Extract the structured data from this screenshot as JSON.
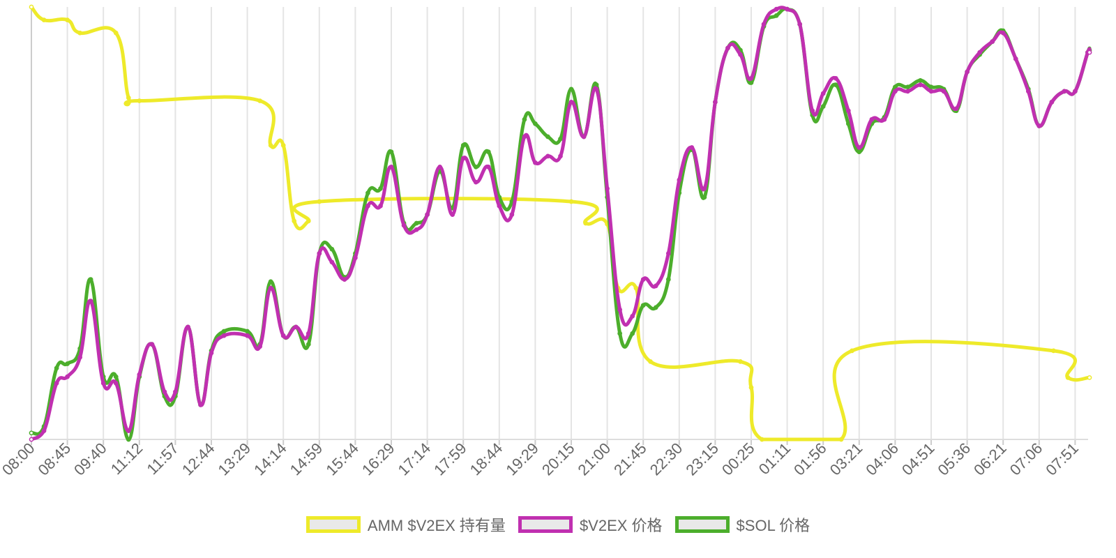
{
  "chart_data": {
    "type": "line",
    "title": "",
    "xlabel": "",
    "ylabel": "",
    "grid": true,
    "legend_position": "bottom",
    "x_tick_labels": [
      "08:00",
      "08:45",
      "09:40",
      "11:12",
      "11:57",
      "12:44",
      "13:29",
      "14:14",
      "14:59",
      "15:44",
      "16:29",
      "17:14",
      "17:59",
      "18:44",
      "19:29",
      "20:15",
      "21:00",
      "21:45",
      "22:30",
      "23:15",
      "00:25",
      "01:11",
      "01:56",
      "03:21",
      "04:06",
      "04:51",
      "05:36",
      "06:21",
      "07:06",
      "07:51"
    ],
    "x_range": [
      0,
      29.4
    ],
    "y_range": [
      0,
      100
    ],
    "series": [
      {
        "name": "AMM $V2EX 持有量",
        "color": "#eeea2a",
        "points": [
          [
            0,
            100
          ],
          [
            0.35,
            97
          ],
          [
            1,
            97
          ],
          [
            1.35,
            94
          ],
          [
            2.35,
            94
          ],
          [
            2.7,
            79
          ],
          [
            3,
            78.3
          ],
          [
            6.35,
            78.3
          ],
          [
            6.65,
            68
          ],
          [
            7,
            68
          ],
          [
            7.3,
            50.5
          ],
          [
            7.7,
            50.5
          ],
          [
            8,
            55
          ],
          [
            15,
            55
          ],
          [
            15.4,
            50
          ],
          [
            16,
            49.8
          ],
          [
            16.3,
            35
          ],
          [
            16.8,
            35
          ],
          [
            17.2,
            18
          ],
          [
            19.7,
            18
          ],
          [
            20,
            12
          ],
          [
            20.3,
            0
          ],
          [
            22.5,
            0
          ],
          [
            22.8,
            20.5
          ],
          [
            28.4,
            20.5
          ],
          [
            28.8,
            14.3
          ],
          [
            29.4,
            14.3
          ]
        ]
      },
      {
        "name": "$V2EX 价格",
        "color": "#c030b0",
        "points": [
          [
            0,
            0
          ],
          [
            0.35,
            2
          ],
          [
            0.7,
            13
          ],
          [
            1,
            14.5
          ],
          [
            1.35,
            19
          ],
          [
            1.65,
            32
          ],
          [
            2,
            13
          ],
          [
            2.35,
            13
          ],
          [
            2.7,
            2
          ],
          [
            3,
            15
          ],
          [
            3.35,
            22
          ],
          [
            3.7,
            11
          ],
          [
            4,
            11
          ],
          [
            4.35,
            26
          ],
          [
            4.7,
            8
          ],
          [
            5,
            20
          ],
          [
            5.35,
            24
          ],
          [
            6,
            24
          ],
          [
            6.35,
            21.5
          ],
          [
            6.65,
            35
          ],
          [
            7,
            24
          ],
          [
            7.35,
            26
          ],
          [
            7.7,
            24.5
          ],
          [
            8,
            43
          ],
          [
            8.35,
            41
          ],
          [
            8.7,
            37
          ],
          [
            9,
            42
          ],
          [
            9.35,
            54
          ],
          [
            9.7,
            54
          ],
          [
            10,
            63
          ],
          [
            10.35,
            49.5
          ],
          [
            10.7,
            48.5
          ],
          [
            11,
            52
          ],
          [
            11.35,
            63
          ],
          [
            11.7,
            52
          ],
          [
            12,
            65
          ],
          [
            12.35,
            59.5
          ],
          [
            12.7,
            63
          ],
          [
            13,
            54
          ],
          [
            13.35,
            52
          ],
          [
            13.7,
            70
          ],
          [
            14,
            64
          ],
          [
            14.35,
            65.5
          ],
          [
            14.7,
            65.5
          ],
          [
            15,
            78
          ],
          [
            15.35,
            70
          ],
          [
            15.7,
            81
          ],
          [
            16,
            58
          ],
          [
            16.35,
            30
          ],
          [
            16.7,
            28.5
          ],
          [
            17,
            37
          ],
          [
            17.35,
            35.5
          ],
          [
            17.7,
            43
          ],
          [
            18,
            60
          ],
          [
            18.35,
            67.5
          ],
          [
            18.7,
            58
          ],
          [
            19,
            78
          ],
          [
            19.35,
            90.5
          ],
          [
            19.7,
            89
          ],
          [
            20,
            83.5
          ],
          [
            20.35,
            96
          ],
          [
            20.7,
            99.5
          ],
          [
            21,
            99.5
          ],
          [
            21.35,
            96
          ],
          [
            21.7,
            76
          ],
          [
            22,
            80
          ],
          [
            22.35,
            83.5
          ],
          [
            22.7,
            76
          ],
          [
            23,
            67.5
          ],
          [
            23.35,
            74
          ],
          [
            23.7,
            74
          ],
          [
            24,
            80.5
          ],
          [
            24.35,
            80.5
          ],
          [
            24.7,
            82
          ],
          [
            25,
            80.5
          ],
          [
            25.35,
            80.5
          ],
          [
            25.7,
            76.5
          ],
          [
            26,
            85
          ],
          [
            26.35,
            89.5
          ],
          [
            26.7,
            92
          ],
          [
            27,
            94
          ],
          [
            27.35,
            88
          ],
          [
            27.7,
            80.5
          ],
          [
            28,
            72.5
          ],
          [
            28.35,
            78
          ],
          [
            28.7,
            80.5
          ],
          [
            29,
            80.5
          ],
          [
            29.35,
            89.5
          ],
          [
            29.4,
            89.5
          ]
        ]
      },
      {
        "name": "$SOL 价格",
        "color": "#4cae2c",
        "points": [
          [
            0,
            1.5
          ],
          [
            0.35,
            3
          ],
          [
            0.7,
            16.5
          ],
          [
            1,
            17.5
          ],
          [
            1.35,
            21
          ],
          [
            1.65,
            37
          ],
          [
            2,
            14.5
          ],
          [
            2.35,
            14.5
          ],
          [
            2.7,
            0
          ],
          [
            3,
            14.5
          ],
          [
            3.35,
            22
          ],
          [
            3.7,
            10
          ],
          [
            4,
            10
          ],
          [
            4.35,
            26
          ],
          [
            4.7,
            8
          ],
          [
            5,
            20.5
          ],
          [
            5.35,
            25
          ],
          [
            6,
            25
          ],
          [
            6.35,
            22
          ],
          [
            6.65,
            36.5
          ],
          [
            7,
            24
          ],
          [
            7.35,
            26
          ],
          [
            7.7,
            22
          ],
          [
            8,
            43
          ],
          [
            8.35,
            44
          ],
          [
            8.7,
            37.5
          ],
          [
            9,
            43
          ],
          [
            9.35,
            57
          ],
          [
            9.7,
            58
          ],
          [
            10,
            66.5
          ],
          [
            10.35,
            50
          ],
          [
            10.7,
            50
          ],
          [
            11,
            52
          ],
          [
            11.35,
            62
          ],
          [
            11.7,
            53.5
          ],
          [
            12,
            68
          ],
          [
            12.35,
            63
          ],
          [
            12.7,
            66.5
          ],
          [
            13,
            56
          ],
          [
            13.35,
            55
          ],
          [
            13.7,
            74
          ],
          [
            14,
            73
          ],
          [
            14.35,
            70
          ],
          [
            14.7,
            69.5
          ],
          [
            15,
            81
          ],
          [
            15.35,
            70
          ],
          [
            15.7,
            82
          ],
          [
            16,
            56
          ],
          [
            16.35,
            24.5
          ],
          [
            16.7,
            24.5
          ],
          [
            17,
            31
          ],
          [
            17.35,
            30.5
          ],
          [
            17.7,
            37
          ],
          [
            18,
            57
          ],
          [
            18.35,
            67
          ],
          [
            18.7,
            56
          ],
          [
            19,
            78
          ],
          [
            19.35,
            90.5
          ],
          [
            19.7,
            90
          ],
          [
            20,
            82.5
          ],
          [
            20.35,
            95.5
          ],
          [
            20.7,
            98
          ],
          [
            21,
            99.5
          ],
          [
            21.35,
            96
          ],
          [
            21.7,
            75
          ],
          [
            22,
            77
          ],
          [
            22.35,
            82
          ],
          [
            22.7,
            73
          ],
          [
            23,
            66.5
          ],
          [
            23.35,
            73
          ],
          [
            23.7,
            74.5
          ],
          [
            24,
            81.5
          ],
          [
            24.35,
            81.5
          ],
          [
            24.7,
            83
          ],
          [
            25,
            81.5
          ],
          [
            25.35,
            81
          ],
          [
            25.7,
            76
          ],
          [
            26,
            85
          ],
          [
            26.35,
            89
          ],
          [
            26.7,
            92
          ],
          [
            27,
            94.5
          ],
          [
            27.35,
            88
          ],
          [
            27.7,
            81
          ],
          [
            28,
            72.5
          ],
          [
            28.35,
            78
          ],
          [
            28.7,
            80.5
          ],
          [
            29,
            80.5
          ],
          [
            29.35,
            89.5
          ],
          [
            29.4,
            90
          ]
        ]
      }
    ]
  }
}
